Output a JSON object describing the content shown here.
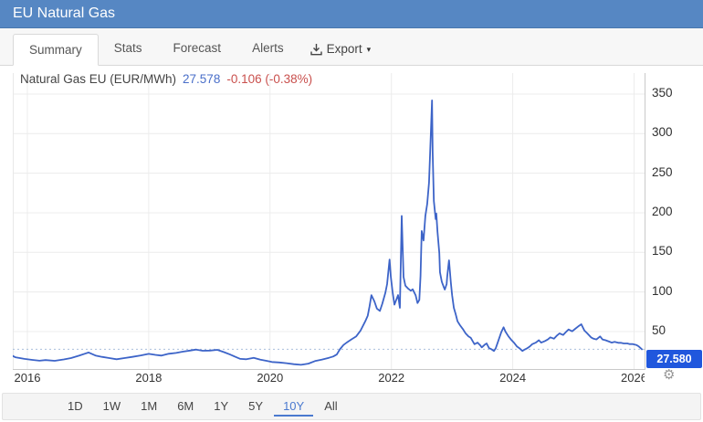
{
  "header": {
    "title": "EU Natural Gas"
  },
  "tabs": [
    {
      "label": "Summary",
      "active": true
    },
    {
      "label": "Stats",
      "active": false
    },
    {
      "label": "Forecast",
      "active": false
    },
    {
      "label": "Alerts",
      "active": false
    }
  ],
  "export": {
    "label": "Export",
    "icon": "download-icon",
    "caret_glyph": "▾"
  },
  "quote": {
    "instrument": "Natural Gas EU (EUR/MWh)",
    "price": "27.578",
    "change": "-0.106 (-0.38%)"
  },
  "icons": {
    "settings_glyph": "⚙"
  },
  "range_bar": {
    "options": [
      "1D",
      "1W",
      "1M",
      "6M",
      "1Y",
      "5Y",
      "10Y",
      "All"
    ],
    "active": "10Y"
  },
  "colors": {
    "header_bg": "#5687c3",
    "line": "#3d64c8",
    "price_text": "#4a6fc9",
    "change_negative": "#c9504d",
    "badge_bg": "#2057dd",
    "range_active": "#4a79cf"
  },
  "chart_data": {
    "type": "line",
    "title": "Natural Gas EU (EUR/MWh)",
    "series_name": "Natural Gas EU",
    "unit": "EUR/MWh",
    "x_ticks": [
      2016,
      2018,
      2020,
      2022,
      2024,
      2026
    ],
    "y_ticks": [
      50,
      100,
      150,
      200,
      250,
      300,
      350
    ],
    "xlim": [
      2015.74,
      2026.19
    ],
    "ylim": [
      0,
      376
    ],
    "grid": true,
    "legend": "none",
    "current_value": 27.578,
    "last_label": "27.580",
    "points": [
      [
        2015.74,
        20.0
      ],
      [
        2015.8,
        17.5
      ],
      [
        2015.95,
        15.5
      ],
      [
        2016.08,
        14.2
      ],
      [
        2016.2,
        13.2
      ],
      [
        2016.3,
        14.0
      ],
      [
        2016.45,
        13.0
      ],
      [
        2016.6,
        14.8
      ],
      [
        2016.72,
        16.5
      ],
      [
        2016.85,
        19.5
      ],
      [
        2016.95,
        22.0
      ],
      [
        2017.01,
        23.5
      ],
      [
        2017.13,
        19.5
      ],
      [
        2017.23,
        18.0
      ],
      [
        2017.35,
        16.5
      ],
      [
        2017.47,
        15.0
      ],
      [
        2017.6,
        16.5
      ],
      [
        2017.73,
        18.0
      ],
      [
        2017.87,
        19.8
      ],
      [
        2018.0,
        21.8
      ],
      [
        2018.11,
        20.5
      ],
      [
        2018.21,
        19.6
      ],
      [
        2018.33,
        21.9
      ],
      [
        2018.45,
        23.0
      ],
      [
        2018.56,
        24.6
      ],
      [
        2018.68,
        26.0
      ],
      [
        2018.78,
        27.2
      ],
      [
        2018.89,
        25.7
      ],
      [
        2019.01,
        26.0
      ],
      [
        2019.13,
        26.9
      ],
      [
        2019.24,
        24.0
      ],
      [
        2019.34,
        21.0
      ],
      [
        2019.43,
        18.0
      ],
      [
        2019.51,
        15.5
      ],
      [
        2019.61,
        15.0
      ],
      [
        2019.73,
        16.9
      ],
      [
        2019.84,
        14.5
      ],
      [
        2019.94,
        13.0
      ],
      [
        2020.03,
        11.5
      ],
      [
        2020.15,
        11.0
      ],
      [
        2020.27,
        10.0
      ],
      [
        2020.39,
        8.8
      ],
      [
        2020.51,
        8.0
      ],
      [
        2020.63,
        9.5
      ],
      [
        2020.74,
        12.7
      ],
      [
        2020.85,
        14.5
      ],
      [
        2020.97,
        16.9
      ],
      [
        2021.04,
        18.5
      ],
      [
        2021.1,
        21.0
      ],
      [
        2021.15,
        27.5
      ],
      [
        2021.21,
        33.0
      ],
      [
        2021.27,
        36.5
      ],
      [
        2021.34,
        40.0
      ],
      [
        2021.42,
        44.0
      ],
      [
        2021.49,
        51.0
      ],
      [
        2021.57,
        63.0
      ],
      [
        2021.61,
        70.0
      ],
      [
        2021.64,
        82.0
      ],
      [
        2021.67,
        96.0
      ],
      [
        2021.72,
        88.0
      ],
      [
        2021.76,
        79.0
      ],
      [
        2021.81,
        76.0
      ],
      [
        2021.85,
        85.0
      ],
      [
        2021.9,
        99.0
      ],
      [
        2021.93,
        110.0
      ],
      [
        2021.97,
        141.0
      ],
      [
        2021.99,
        120.0
      ],
      [
        2022.02,
        100.0
      ],
      [
        2022.05,
        84.0
      ],
      [
        2022.08,
        90.0
      ],
      [
        2022.11,
        96.0
      ],
      [
        2022.14,
        80.0
      ],
      [
        2022.17,
        196.0
      ],
      [
        2022.2,
        119.0
      ],
      [
        2022.23,
        108.0
      ],
      [
        2022.28,
        104.0
      ],
      [
        2022.32,
        101.5
      ],
      [
        2022.35,
        103.4
      ],
      [
        2022.4,
        95.7
      ],
      [
        2022.43,
        86.0
      ],
      [
        2022.46,
        90.0
      ],
      [
        2022.48,
        120.0
      ],
      [
        2022.5,
        177.0
      ],
      [
        2022.53,
        165.0
      ],
      [
        2022.56,
        196.0
      ],
      [
        2022.59,
        211.0
      ],
      [
        2022.62,
        238.0
      ],
      [
        2022.65,
        300.0
      ],
      [
        2022.67,
        342.0
      ],
      [
        2022.68,
        276.0
      ],
      [
        2022.7,
        215.0
      ],
      [
        2022.73,
        192.0
      ],
      [
        2022.74,
        199.0
      ],
      [
        2022.76,
        176.0
      ],
      [
        2022.79,
        149.0
      ],
      [
        2022.8,
        125.0
      ],
      [
        2022.83,
        113.0
      ],
      [
        2022.86,
        107.0
      ],
      [
        2022.88,
        103.0
      ],
      [
        2022.91,
        110.0
      ],
      [
        2022.92,
        119.0
      ],
      [
        2022.94,
        134.0
      ],
      [
        2022.95,
        140.0
      ],
      [
        2022.98,
        112.0
      ],
      [
        2023.0,
        96.0
      ],
      [
        2023.03,
        80.0
      ],
      [
        2023.06,
        72.0
      ],
      [
        2023.09,
        63.0
      ],
      [
        2023.13,
        58.0
      ],
      [
        2023.18,
        53.0
      ],
      [
        2023.22,
        48.0
      ],
      [
        2023.27,
        44.0
      ],
      [
        2023.31,
        42.0
      ],
      [
        2023.34,
        38.0
      ],
      [
        2023.37,
        34.0
      ],
      [
        2023.42,
        36.0
      ],
      [
        2023.46,
        33.0
      ],
      [
        2023.49,
        30.0
      ],
      [
        2023.54,
        33.5
      ],
      [
        2023.57,
        35.0
      ],
      [
        2023.61,
        29.0
      ],
      [
        2023.64,
        28.0
      ],
      [
        2023.69,
        25.5
      ],
      [
        2023.72,
        29.0
      ],
      [
        2023.76,
        38.0
      ],
      [
        2023.81,
        49.0
      ],
      [
        2023.85,
        55.4
      ],
      [
        2023.88,
        50.0
      ],
      [
        2023.93,
        44.0
      ],
      [
        2023.97,
        40.0
      ],
      [
        2024.02,
        36.0
      ],
      [
        2024.07,
        31.0
      ],
      [
        2024.11,
        29.0
      ],
      [
        2024.16,
        25.5
      ],
      [
        2024.19,
        27.0
      ],
      [
        2024.23,
        28.5
      ],
      [
        2024.28,
        31.0
      ],
      [
        2024.32,
        34.0
      ],
      [
        2024.38,
        36.0
      ],
      [
        2024.43,
        39.0
      ],
      [
        2024.47,
        36.0
      ],
      [
        2024.53,
        38.0
      ],
      [
        2024.58,
        40.0
      ],
      [
        2024.62,
        42.7
      ],
      [
        2024.68,
        41.0
      ],
      [
        2024.73,
        45.0
      ],
      [
        2024.77,
        47.6
      ],
      [
        2024.83,
        45.7
      ],
      [
        2024.88,
        49.6
      ],
      [
        2024.92,
        52.6
      ],
      [
        2024.98,
        50.3
      ],
      [
        2025.03,
        53.4
      ],
      [
        2025.08,
        56.5
      ],
      [
        2025.13,
        59.2
      ],
      [
        2025.18,
        51.5
      ],
      [
        2025.23,
        47.6
      ],
      [
        2025.29,
        42.7
      ],
      [
        2025.33,
        41.0
      ],
      [
        2025.38,
        40.0
      ],
      [
        2025.44,
        43.8
      ],
      [
        2025.48,
        40.0
      ],
      [
        2025.53,
        39.0
      ],
      [
        2025.59,
        37.3
      ],
      [
        2025.63,
        36.0
      ],
      [
        2025.68,
        36.9
      ],
      [
        2025.74,
        35.8
      ],
      [
        2025.78,
        35.8
      ],
      [
        2025.83,
        35.0
      ],
      [
        2025.89,
        35.0
      ],
      [
        2025.93,
        34.2
      ],
      [
        2025.98,
        34.2
      ],
      [
        2026.04,
        33.0
      ],
      [
        2026.08,
        31.0
      ],
      [
        2026.13,
        27.6
      ]
    ]
  }
}
